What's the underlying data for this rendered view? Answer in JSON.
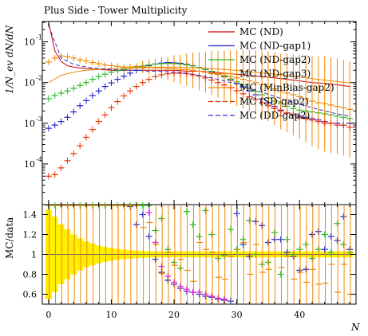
{
  "chart_data": [
    {
      "type": "line",
      "title": "Plus Side - Tower Multiplicity",
      "xlabel": "N",
      "ylabel": "1/N_ev dN/dN",
      "yscale": "log",
      "xlim": [
        -1,
        49
      ],
      "ylim_log10": [
        -5.0,
        -0.5
      ],
      "x_ticks": [
        0,
        10,
        20,
        30,
        40
      ],
      "y_tick_labels": [
        {
          "exp": -1,
          "label": "10"
        },
        {
          "exp": -2,
          "label": "10"
        },
        {
          "exp": -3,
          "label": "10"
        },
        {
          "exp": -4,
          "label": "10"
        }
      ],
      "legend_position": "top-right",
      "series": [
        {
          "name": "MC (ND)",
          "color": "#cc0000",
          "style": "solid",
          "kind": "line",
          "x": [
            0,
            1,
            2,
            3,
            4,
            6,
            8,
            10,
            12,
            14,
            16,
            18,
            20,
            22,
            24,
            26,
            28,
            30,
            32,
            34,
            36,
            38,
            40,
            42,
            44,
            46,
            48
          ],
          "y": [
            0.3,
            0.06,
            0.033,
            0.026,
            0.024,
            0.022,
            0.021,
            0.02,
            0.02,
            0.02,
            0.02,
            0.02,
            0.02,
            0.019,
            0.019,
            0.018,
            0.017,
            0.016,
            0.015,
            0.014,
            0.013,
            0.012,
            0.011,
            0.01,
            0.0095,
            0.0088,
            0.008
          ]
        },
        {
          "name": "MC (ND-gap1)",
          "color": "#2222cc",
          "style": "cross",
          "kind": "markers",
          "x": [
            0,
            1,
            2,
            3,
            4,
            5,
            6,
            7,
            8,
            9,
            10,
            11,
            12,
            13,
            14,
            15,
            16,
            17,
            18,
            19,
            20,
            21,
            22,
            23,
            24,
            25,
            26,
            27,
            28,
            29,
            30,
            31,
            32,
            33,
            34,
            35,
            36,
            37,
            38,
            39,
            40,
            41,
            42,
            43,
            44,
            45,
            46,
            47,
            48
          ],
          "y": [
            0.00075,
            0.0009,
            0.0011,
            0.0014,
            0.0019,
            0.0027,
            0.0036,
            0.0048,
            0.0062,
            0.008,
            0.0098,
            0.012,
            0.0143,
            0.017,
            0.02,
            0.023,
            0.026,
            0.0285,
            0.03,
            0.031,
            0.0305,
            0.0298,
            0.028,
            0.0258,
            0.0235,
            0.021,
            0.0185,
            0.016,
            0.0138,
            0.0115,
            0.0095,
            0.0078,
            0.0062,
            0.005,
            0.004,
            0.0032,
            0.0026,
            0.0021,
            0.0018,
            0.0016,
            0.0015,
            0.0014,
            0.0013,
            0.0012,
            0.0011,
            0.001,
            0.001,
            0.0009,
            0.001
          ]
        },
        {
          "name": "MC (ND-gap2)",
          "color": "#22bb22",
          "style": "cross",
          "kind": "markers",
          "x": [
            0,
            1,
            2,
            3,
            4,
            5,
            6,
            7,
            8,
            9,
            10,
            11,
            12,
            13,
            14,
            15,
            16,
            17,
            18,
            19,
            20,
            21,
            22,
            23,
            24,
            25,
            26,
            27,
            28,
            29,
            30,
            31,
            32,
            33,
            34,
            35,
            36,
            37,
            38,
            39,
            40,
            41,
            42,
            43,
            44,
            45,
            46,
            47,
            48
          ],
          "y": [
            0.004,
            0.0048,
            0.0055,
            0.0062,
            0.0072,
            0.0085,
            0.01,
            0.012,
            0.014,
            0.016,
            0.018,
            0.0195,
            0.021,
            0.0225,
            0.024,
            0.0255,
            0.027,
            0.0283,
            0.029,
            0.0295,
            0.0292,
            0.0285,
            0.0272,
            0.0255,
            0.0235,
            0.021,
            0.0188,
            0.0165,
            0.0142,
            0.0122,
            0.0104,
            0.0088,
            0.0073,
            0.006,
            0.005,
            0.0042,
            0.0035,
            0.003,
            0.0026,
            0.0023,
            0.0021,
            0.002,
            0.0019,
            0.0018,
            0.0017,
            0.0016,
            0.0015,
            0.0014,
            0.0013
          ]
        },
        {
          "name": "MC (ND-gap3)",
          "color": "#ee8800",
          "style": "cross",
          "kind": "markers",
          "x": [
            0,
            1,
            2,
            3,
            4,
            5,
            6,
            7,
            8,
            9,
            10,
            11,
            12,
            13,
            14,
            15,
            16,
            17,
            18,
            19,
            20,
            21,
            22,
            23,
            24,
            25,
            26,
            27,
            28,
            29,
            30,
            31,
            32,
            33,
            34,
            35,
            36,
            37,
            38,
            39,
            40,
            41,
            42,
            43,
            44,
            45,
            46,
            47,
            48
          ],
          "y": [
            0.032,
            0.04,
            0.045,
            0.043,
            0.04,
            0.036,
            0.034,
            0.031,
            0.029,
            0.027,
            0.026,
            0.025,
            0.024,
            0.024,
            0.025,
            0.024,
            0.024,
            0.023,
            0.023,
            0.022,
            0.022,
            0.021,
            0.021,
            0.02,
            0.019,
            0.018,
            0.017,
            0.016,
            0.015,
            0.014,
            0.013,
            0.012,
            0.011,
            0.01,
            0.009,
            0.008,
            0.007,
            0.006,
            0.0055,
            0.005,
            0.0045,
            0.004,
            0.0035,
            0.0032,
            0.003,
            0.0028,
            0.0026,
            0.0024,
            0.0022
          ]
        },
        {
          "name": "MC (MinBias-gap2)",
          "color": "#ee8800",
          "style": "solid",
          "kind": "line",
          "x": [
            0,
            2,
            4,
            6,
            8,
            10,
            12,
            14,
            16,
            18,
            20,
            22,
            24,
            26,
            28,
            30,
            32,
            34,
            36,
            38,
            40,
            42,
            44,
            46,
            48
          ],
          "y": [
            0.01,
            0.015,
            0.018,
            0.02,
            0.021,
            0.022,
            0.0225,
            0.023,
            0.0235,
            0.024,
            0.024,
            0.0235,
            0.0228,
            0.022,
            0.021,
            0.0198,
            0.0185,
            0.0172,
            0.016,
            0.0148,
            0.0136,
            0.0125,
            0.0115,
            0.0106,
            0.0098
          ]
        },
        {
          "name": "MC (SD-gap2)",
          "color": "#ee3300",
          "style": "dashed",
          "kind": "markers",
          "x": [
            0,
            1,
            2,
            3,
            4,
            5,
            6,
            7,
            8,
            9,
            10,
            11,
            12,
            13,
            14,
            15,
            16,
            17,
            18,
            19,
            20,
            21,
            22,
            23,
            24,
            25,
            26,
            27,
            28,
            29,
            30,
            31,
            32,
            33,
            34,
            35,
            36,
            37,
            38,
            39,
            40,
            41,
            42,
            43,
            44,
            45,
            46,
            47,
            48
          ],
          "y": [
            5e-05,
            5.5e-05,
            8e-05,
            0.00012,
            0.00018,
            0.00028,
            0.00045,
            0.0007,
            0.0011,
            0.0016,
            0.0024,
            0.0034,
            0.0047,
            0.0062,
            0.008,
            0.01,
            0.012,
            0.014,
            0.0155,
            0.0165,
            0.017,
            0.017,
            0.0165,
            0.0155,
            0.0145,
            0.013,
            0.0115,
            0.01,
            0.0087,
            0.0074,
            0.0063,
            0.0053,
            0.0045,
            0.0038,
            0.0032,
            0.0027,
            0.0023,
            0.002,
            0.0018,
            0.0016,
            0.0014,
            0.0013,
            0.0012,
            0.0011,
            0.001,
            0.001,
            0.0009,
            0.0009,
            0.0008
          ]
        },
        {
          "name": "MC (DD-gap2)",
          "color": "#3333cc",
          "style": "dashed",
          "kind": "line",
          "x": [
            0,
            2,
            4,
            6,
            8,
            10,
            12,
            14,
            16,
            18,
            20,
            22,
            24,
            26,
            28,
            30,
            32,
            34,
            36,
            38,
            40,
            42,
            44,
            46,
            48
          ],
          "y": [
            0.25,
            0.04,
            0.028,
            0.024,
            0.022,
            0.021,
            0.02,
            0.02,
            0.019,
            0.019,
            0.018,
            0.017,
            0.015,
            0.013,
            0.011,
            0.009,
            0.0072,
            0.0058,
            0.0046,
            0.0036,
            0.0029,
            0.0024,
            0.002,
            0.0017,
            0.0015
          ]
        }
      ]
    },
    {
      "type": "line",
      "ylabel": "MC/data",
      "xlabel": "N",
      "xlim": [
        -1,
        49
      ],
      "ylim": [
        0.5,
        1.5
      ],
      "y_ticks": [
        0.6,
        0.8,
        1.0,
        1.2,
        1.4
      ],
      "x_ticks": [
        0,
        10,
        20,
        30,
        40
      ],
      "data_band": {
        "color": "#ffee00",
        "x": [
          0,
          1,
          2,
          3,
          4,
          5,
          6,
          7,
          8,
          9,
          10,
          11,
          12,
          13,
          14,
          15,
          16,
          17,
          18,
          19,
          20,
          21,
          22,
          23,
          24,
          25,
          26,
          27,
          28,
          29,
          30,
          31,
          32,
          33,
          34,
          35,
          36,
          37,
          38,
          39,
          40,
          41,
          42,
          43,
          44,
          45,
          46,
          47,
          48
        ],
        "half_width": [
          0.45,
          0.38,
          0.3,
          0.25,
          0.2,
          0.16,
          0.13,
          0.11,
          0.09,
          0.075,
          0.065,
          0.055,
          0.048,
          0.042,
          0.038,
          0.035,
          0.032,
          0.03,
          0.03,
          0.03,
          0.03,
          0.03,
          0.03,
          0.03,
          0.03,
          0.03,
          0.03,
          0.03,
          0.03,
          0.03,
          0.03,
          0.03,
          0.03,
          0.03,
          0.03,
          0.03,
          0.03,
          0.03,
          0.03,
          0.03,
          0.03,
          0.03,
          0.03,
          0.03,
          0.03,
          0.03,
          0.03,
          0.03,
          0.03
        ]
      },
      "series": [
        {
          "color": "#2222cc",
          "x": [
            13,
            14,
            15,
            16,
            17,
            18,
            19,
            20,
            21,
            22,
            23,
            24,
            25,
            26,
            27,
            28,
            29,
            30,
            31,
            32,
            33,
            34,
            35,
            36,
            37,
            38,
            39,
            40,
            41,
            42,
            43,
            44,
            45,
            46,
            47,
            48
          ],
          "y": [
            1.48,
            1.3,
            1.4,
            1.18,
            0.95,
            0.82,
            0.74,
            0.7,
            0.66,
            0.63,
            0.62,
            0.6,
            0.58,
            0.57,
            0.55,
            0.54,
            0.53,
            1.41,
            1.1,
            0.98,
            1.33,
            1.29,
            1.12,
            1.15,
            1.15,
            1.02,
            0.98,
            0.84,
            0.85,
            1.2,
            1.23,
            1.05,
            1.18,
            1.14,
            1.38,
            1.05
          ]
        },
        {
          "color": "#22bb22",
          "x": [
            0,
            1,
            2,
            3,
            4,
            5,
            6,
            7,
            8,
            9,
            10,
            11,
            12,
            13,
            14,
            15,
            16,
            17,
            18,
            19,
            20,
            21,
            22,
            23,
            24,
            25,
            26,
            27,
            28,
            29,
            30,
            31,
            32,
            33,
            34,
            35,
            36,
            37,
            38,
            39,
            40,
            41,
            42,
            43,
            44,
            45,
            46,
            47,
            48
          ],
          "y": [
            1.5,
            1.5,
            1.5,
            1.5,
            1.5,
            1.5,
            1.5,
            1.5,
            1.5,
            1.5,
            1.5,
            1.5,
            1.5,
            1.5,
            1.5,
            1.5,
            1.5,
            1.24,
            1.36,
            1.05,
            0.92,
            0.86,
            1.43,
            1.3,
            1.18,
            1.44,
            1.2,
            0.96,
            0.99,
            1.25,
            1.05,
            1.15,
            1.34,
            1.0,
            0.9,
            0.92,
            1.22,
            0.8,
            1.15,
            1.0,
            1.05,
            1.1,
            0.96,
            1.05,
            1.2,
            1.02,
            1.31,
            1.1,
            1.02
          ]
        },
        {
          "color": "#ee8800",
          "x": [
            0,
            1,
            2,
            3,
            4,
            5,
            6,
            7,
            8,
            9,
            10,
            11,
            12,
            13,
            14,
            15,
            16,
            17,
            18,
            19,
            20,
            21,
            22,
            23,
            24,
            25,
            26,
            27,
            28,
            29,
            30,
            31,
            32,
            33,
            34,
            35,
            36,
            37,
            38,
            39,
            40,
            41,
            42,
            43,
            44,
            45,
            46,
            47,
            48
          ],
          "y": [
            1.5,
            1.5,
            1.5,
            1.5,
            1.5,
            1.5,
            1.5,
            1.5,
            1.5,
            1.5,
            1.5,
            1.5,
            1.5,
            1.5,
            1.5,
            1.27,
            1.32,
            1.1,
            0.81,
            1.02,
            0.89,
            0.95,
            0.84,
            0.73,
            1.12,
            1.05,
            1.02,
            0.77,
            0.75,
            0.98,
            1.05,
            1.12,
            0.8,
            1.1,
            0.82,
            0.85,
            1.0,
            0.87,
            0.98,
            0.75,
            0.82,
            0.72,
            0.85,
            0.7,
            0.71,
            0.9,
            0.62,
            0.9,
            0.6
          ]
        },
        {
          "color": "#dd22dd",
          "x": [
            16,
            17,
            18,
            19,
            20,
            21,
            22,
            23,
            24,
            25,
            26,
            27,
            28
          ],
          "y": [
            1.42,
            1.12,
            0.88,
            0.78,
            0.72,
            0.68,
            0.65,
            0.62,
            0.62,
            0.6,
            0.58,
            0.56,
            0.55
          ]
        }
      ]
    }
  ]
}
